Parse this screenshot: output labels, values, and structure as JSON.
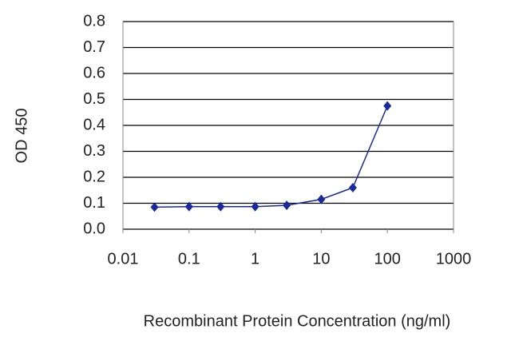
{
  "chart_data": {
    "type": "line",
    "xlabel": "Recombinant Protein Concentration (ng/ml)",
    "ylabel": "OD 450",
    "x": [
      0.03,
      0.1,
      0.3,
      1,
      3,
      10,
      30,
      100
    ],
    "series": [
      {
        "color": "#1a2a9c",
        "values": [
          0.085,
          0.087,
          0.087,
          0.087,
          0.092,
          0.115,
          0.16,
          0.475
        ]
      }
    ],
    "xscale": "log",
    "xlim": [
      0.01,
      1000
    ],
    "xticks": [
      0.01,
      0.1,
      1,
      10,
      100,
      1000
    ],
    "ylim": [
      0,
      0.8
    ],
    "yticks": [
      {
        "value": 0,
        "label": "0.0"
      },
      0.1,
      0.2,
      0.3,
      0.4,
      0.5,
      0.6,
      0.7,
      0.8
    ],
    "grid": true
  }
}
